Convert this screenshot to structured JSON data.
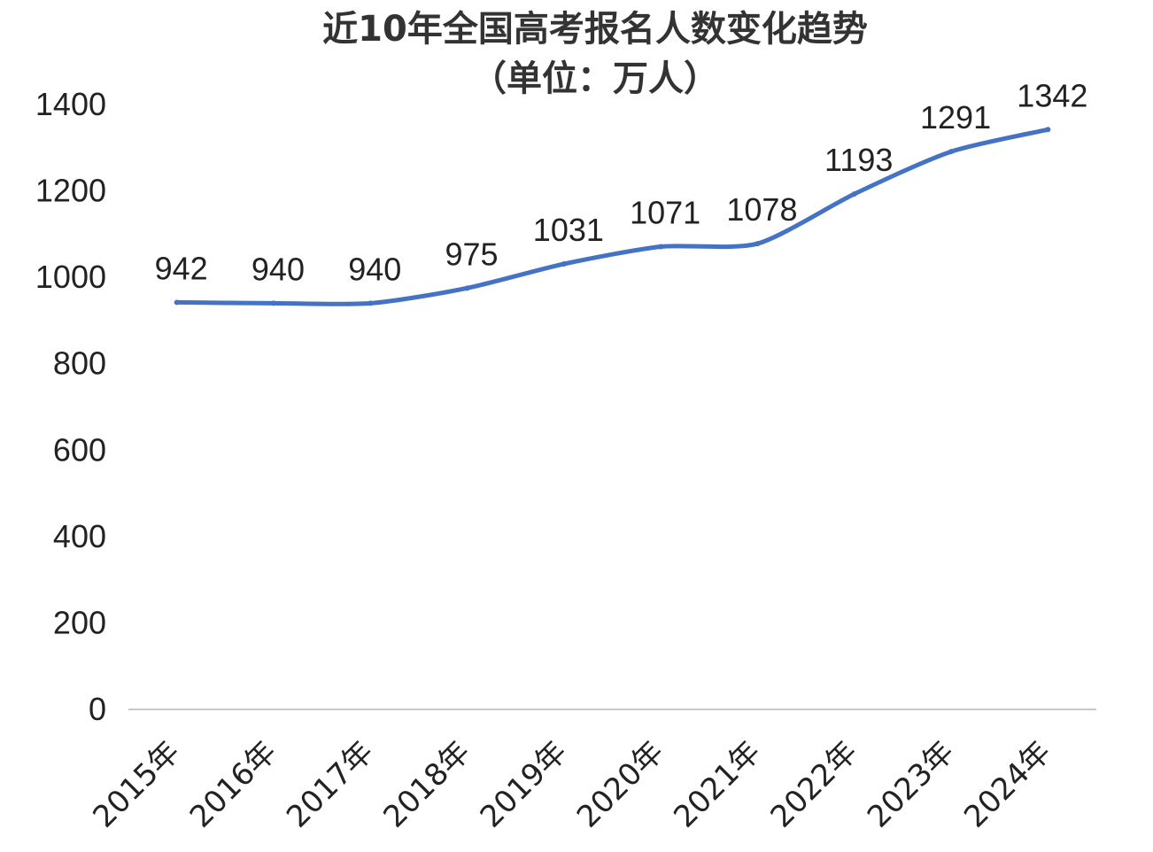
{
  "chart_data": {
    "type": "line",
    "title": "近10年全国高考报名人数变化趋势",
    "subtitle": "（单位：万人）",
    "categories": [
      "2015年",
      "2016年",
      "2017年",
      "2018年",
      "2019年",
      "2020年",
      "2021年",
      "2022年",
      "2023年",
      "2024年"
    ],
    "values": [
      942,
      940,
      940,
      975,
      1031,
      1071,
      1078,
      1193,
      1291,
      1342
    ],
    "ylim": [
      0,
      1400
    ],
    "yticks": [
      0,
      200,
      400,
      600,
      800,
      1000,
      1200,
      1400
    ],
    "grid": false,
    "legend": "none",
    "line_color": "#4472c4",
    "axis_color": "#c8c8c8"
  }
}
